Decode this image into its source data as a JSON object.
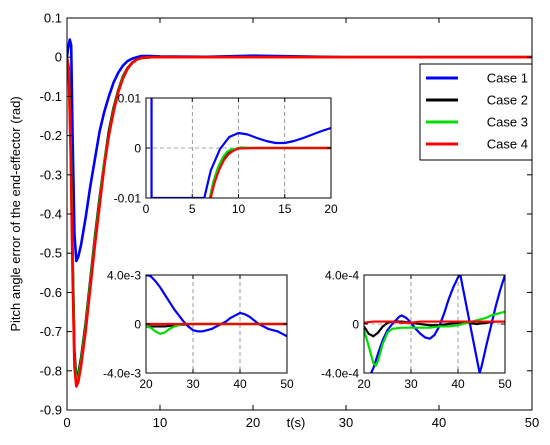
{
  "chart_data": [
    {
      "id": "main",
      "type": "line",
      "xlabel": "t(s)",
      "ylabel": "Pitch angle error of the end-effector (rad)",
      "xlim": [
        0,
        50
      ],
      "ylim": [
        -0.9,
        0.1
      ],
      "xticks": [
        0,
        10,
        20,
        30,
        40,
        50
      ],
      "yticks": [
        -0.9,
        -0.8,
        -0.7,
        -0.6,
        -0.5,
        -0.4,
        -0.3,
        -0.2,
        -0.1,
        0,
        0.1
      ],
      "ytick_labels": [
        "-0.9",
        "-0.8",
        "-0.7",
        "-0.6",
        "-0.5",
        "-0.4",
        "-0.3",
        "-0.2",
        "-0.1",
        "0",
        "0.1"
      ],
      "grid": false,
      "legend": "top-right",
      "series": [
        {
          "name": "Case 1",
          "color": "#0000ff",
          "x": [
            0,
            0.1,
            0.3,
            0.45,
            0.6,
            0.8,
            1.0,
            1.2,
            1.5,
            2,
            2.5,
            3,
            3.5,
            4,
            4.5,
            5,
            5.5,
            6,
            6.5,
            7,
            7.5,
            8,
            8.5,
            9,
            10,
            15,
            20,
            30,
            40,
            50
          ],
          "y": [
            0,
            0.02,
            0.045,
            0.03,
            -0.2,
            -0.45,
            -0.52,
            -0.51,
            -0.48,
            -0.41,
            -0.33,
            -0.26,
            -0.19,
            -0.14,
            -0.1,
            -0.065,
            -0.04,
            -0.022,
            -0.01,
            -0.004,
            0.0,
            0.003,
            0.003,
            0.003,
            0.002,
            0.001,
            0.004,
            0.0,
            0.0,
            0.0
          ]
        },
        {
          "name": "Case 2",
          "color": "#000000",
          "x": [
            0,
            0.2,
            0.4,
            0.6,
            0.8,
            1.0,
            1.2,
            1.5,
            2,
            2.5,
            3,
            3.5,
            4,
            4.5,
            5,
            5.5,
            6,
            6.5,
            7,
            7.5,
            8,
            9,
            10,
            15,
            20,
            30,
            40,
            50
          ],
          "y": [
            0,
            -0.03,
            -0.2,
            -0.5,
            -0.75,
            -0.82,
            -0.81,
            -0.77,
            -0.68,
            -0.57,
            -0.46,
            -0.36,
            -0.27,
            -0.19,
            -0.13,
            -0.085,
            -0.05,
            -0.028,
            -0.014,
            -0.006,
            -0.002,
            0.0,
            0.0,
            0.0,
            0.0,
            0.0,
            0.0,
            0.0
          ]
        },
        {
          "name": "Case 3",
          "color": "#00dd00",
          "x": [
            0,
            0.2,
            0.4,
            0.6,
            0.8,
            1.0,
            1.2,
            1.5,
            2,
            2.5,
            3,
            3.5,
            4,
            4.5,
            5,
            5.5,
            6,
            6.5,
            7,
            7.5,
            8,
            9,
            10,
            15,
            20,
            30,
            40,
            50
          ],
          "y": [
            0,
            -0.04,
            -0.22,
            -0.52,
            -0.77,
            -0.83,
            -0.82,
            -0.78,
            -0.69,
            -0.58,
            -0.47,
            -0.37,
            -0.27,
            -0.2,
            -0.135,
            -0.088,
            -0.052,
            -0.03,
            -0.015,
            -0.006,
            -0.002,
            0.0,
            0.0,
            0.0,
            0.0,
            0.0,
            0.0,
            0.0
          ]
        },
        {
          "name": "Case 4",
          "color": "#ff0000",
          "x": [
            0,
            0.2,
            0.4,
            0.6,
            0.8,
            1.0,
            1.2,
            1.5,
            2,
            2.5,
            3,
            3.5,
            4,
            4.5,
            5,
            5.5,
            6,
            6.5,
            7,
            7.5,
            8,
            9,
            10,
            15,
            20,
            30,
            40,
            50
          ],
          "y": [
            0,
            -0.05,
            -0.25,
            -0.55,
            -0.79,
            -0.84,
            -0.83,
            -0.79,
            -0.7,
            -0.59,
            -0.48,
            -0.38,
            -0.28,
            -0.2,
            -0.14,
            -0.09,
            -0.055,
            -0.03,
            -0.015,
            -0.006,
            -0.002,
            0.0,
            0.0,
            0.0,
            0.0,
            0.0,
            0.0,
            0.0
          ]
        }
      ]
    },
    {
      "id": "inset-1",
      "type": "line",
      "xlim": [
        0,
        20
      ],
      "ylim": [
        -0.01,
        0.01
      ],
      "xticks": [
        0,
        5,
        10,
        15,
        20
      ],
      "yticks": [
        -0.01,
        0,
        0.01
      ],
      "ytick_labels": [
        "-0.01",
        "0",
        "0.01"
      ],
      "grid": true,
      "series": [
        {
          "name": "Case 1",
          "color": "#0000ff",
          "x": [
            0.6,
            0.6,
            6.3,
            7,
            8,
            9,
            10,
            11,
            12,
            13,
            14,
            15,
            16,
            17,
            18,
            19,
            20
          ],
          "y": [
            0.01,
            -0.01,
            -0.01,
            -0.0045,
            -0.0002,
            0.0022,
            0.003,
            0.0027,
            0.002,
            0.0014,
            0.001,
            0.001,
            0.0014,
            0.002,
            0.0027,
            0.0034,
            0.004
          ]
        },
        {
          "name": "Case 2",
          "color": "#000000",
          "x": [
            6.9,
            7.3,
            7.8,
            8.3,
            8.8,
            9.3,
            10,
            12,
            15,
            20
          ],
          "y": [
            -0.01,
            -0.0068,
            -0.0042,
            -0.0024,
            -0.0012,
            -0.0005,
            0.0,
            0.0,
            0.0,
            0.0
          ]
        },
        {
          "name": "Case 3",
          "color": "#00dd00",
          "x": [
            6.9,
            7.3,
            7.8,
            8.3,
            8.8,
            9.2,
            9.6,
            10.2,
            12,
            15,
            20
          ],
          "y": [
            -0.01,
            -0.0066,
            -0.0038,
            -0.0019,
            -0.0007,
            -0.0003,
            -0.0003,
            0.0001,
            0.0,
            0.0,
            0.0
          ]
        },
        {
          "name": "Case 4",
          "color": "#ff0000",
          "x": [
            7.0,
            7.4,
            7.9,
            8.4,
            8.9,
            9.4,
            10,
            12,
            15,
            20
          ],
          "y": [
            -0.01,
            -0.007,
            -0.0044,
            -0.0025,
            -0.0013,
            -0.0006,
            -0.0001,
            0.0,
            0.0,
            0.0
          ]
        }
      ]
    },
    {
      "id": "inset-2",
      "type": "line",
      "xlim": [
        20,
        50
      ],
      "ylim": [
        -0.004,
        0.004
      ],
      "xticks": [
        20,
        30,
        40,
        50
      ],
      "yticks": [
        -0.004,
        0,
        0.004
      ],
      "ytick_labels": [
        "-4.0e-3",
        "0",
        "4.0e-3"
      ],
      "grid": true,
      "series": [
        {
          "name": "Case 1",
          "color": "#0000ff",
          "x": [
            20,
            21,
            22,
            23,
            24,
            25,
            26,
            27,
            28,
            29,
            30,
            31,
            32,
            33,
            34,
            35,
            36,
            37,
            38,
            39,
            40,
            41,
            42,
            43,
            44,
            45,
            46,
            47,
            48,
            49,
            50
          ],
          "y": [
            0.004,
            0.0039,
            0.0035,
            0.003,
            0.0024,
            0.0018,
            0.0012,
            0.0007,
            0.0002,
            -0.0002,
            -0.0005,
            -0.0006,
            -0.0006,
            -0.0005,
            -0.0004,
            -0.0002,
            0.0,
            0.0002,
            0.0005,
            0.0007,
            0.0009,
            0.0008,
            0.0006,
            0.0003,
            0.0,
            -0.0002,
            -0.0004,
            -0.0005,
            -0.0006,
            -0.0008,
            -0.001
          ]
        },
        {
          "name": "Case 2",
          "color": "#000000",
          "x": [
            20,
            22,
            24,
            26,
            30,
            40,
            50
          ],
          "y": [
            -0.0002,
            -0.0002,
            -0.0002,
            -0.0001,
            0.0,
            0.0,
            0.0
          ]
        },
        {
          "name": "Case 3",
          "color": "#00dd00",
          "x": [
            20,
            21,
            22,
            23,
            24,
            25,
            26,
            27,
            28,
            30,
            40,
            50
          ],
          "y": [
            -0.0002,
            -0.0003,
            -0.0006,
            -0.0008,
            -0.0007,
            -0.0004,
            -0.0002,
            -0.0001,
            0.0,
            0.0,
            0.0,
            0.0
          ]
        },
        {
          "name": "Case 4",
          "color": "#ff0000",
          "x": [
            20,
            30,
            40,
            50
          ],
          "y": [
            0.0,
            0.0,
            0.0,
            0.0
          ]
        }
      ]
    },
    {
      "id": "inset-3",
      "type": "line",
      "xlim": [
        20,
        50
      ],
      "ylim": [
        -0.0004,
        0.0004
      ],
      "xticks": [
        20,
        30,
        40,
        50
      ],
      "yticks": [
        -0.0004,
        0,
        0.0004
      ],
      "ytick_labels": [
        "-4.0e-4",
        "0",
        "4.0e-4"
      ],
      "grid": true,
      "series": [
        {
          "name": "Case 1",
          "color": "#0000ff",
          "x": [
            21.5,
            22,
            23,
            24,
            25,
            26,
            27,
            27.5,
            28,
            29,
            30,
            31,
            32,
            33,
            34,
            35,
            36,
            37,
            37.5,
            38,
            39,
            40,
            40.5,
            44.6,
            45,
            46,
            47,
            48,
            49,
            50
          ],
          "y": [
            -0.0004,
            -0.00036,
            -0.00024,
            -0.00013,
            -5e-05,
            0.0,
            4e-05,
            6e-05,
            7e-05,
            5e-05,
            1e-05,
            -4e-05,
            -8e-05,
            -0.00011,
            -0.00012,
            -9e-05,
            -2e-05,
            8e-05,
            0.00014,
            0.0002,
            0.0003,
            0.00038,
            0.0004,
            -0.0004,
            -0.00035,
            -0.00018,
            -2e-05,
            0.00014,
            0.00028,
            0.0004
          ]
        },
        {
          "name": "Case 2",
          "color": "#000000",
          "x": [
            20,
            21,
            22,
            23,
            24,
            25,
            26,
            28,
            30,
            32,
            34,
            36,
            38,
            40,
            42,
            44,
            46,
            48,
            50
          ],
          "y": [
            -2e-05,
            -8e-05,
            -0.0001,
            -7e-05,
            -2e-05,
            1e-05,
            2e-05,
            2e-05,
            1e-05,
            0.0,
            -1e-05,
            -1e-05,
            0.0,
            1e-05,
            1e-05,
            0.0,
            1e-05,
            2e-05,
            2e-05
          ]
        },
        {
          "name": "Case 3",
          "color": "#00dd00",
          "x": [
            20,
            21,
            22,
            22.5,
            23,
            24,
            25,
            26,
            28,
            30,
            32,
            34,
            36,
            38,
            40,
            42,
            43,
            44,
            45,
            46,
            47,
            48,
            49,
            50
          ],
          "y": [
            -5e-05,
            -0.00018,
            -0.00032,
            -0.00034,
            -0.0003,
            -0.00016,
            -7e-05,
            -4e-05,
            -3e-05,
            -3e-05,
            -3e-05,
            -3e-05,
            -2e-05,
            -2e-05,
            -1e-05,
            1e-05,
            2e-05,
            3e-05,
            4e-05,
            5e-05,
            7e-05,
            8e-05,
            9e-05,
            0.0001
          ]
        },
        {
          "name": "Case 4",
          "color": "#ff0000",
          "x": [
            20,
            22,
            24,
            26,
            28,
            30,
            32,
            34,
            36,
            38,
            40,
            42,
            44,
            46,
            48,
            50
          ],
          "y": [
            1e-05,
            2e-05,
            2e-05,
            2e-05,
            1e-05,
            1e-05,
            2e-05,
            2e-05,
            2e-05,
            2e-05,
            2e-05,
            2e-05,
            2e-05,
            2e-05,
            2e-05,
            2e-05
          ]
        }
      ]
    }
  ]
}
